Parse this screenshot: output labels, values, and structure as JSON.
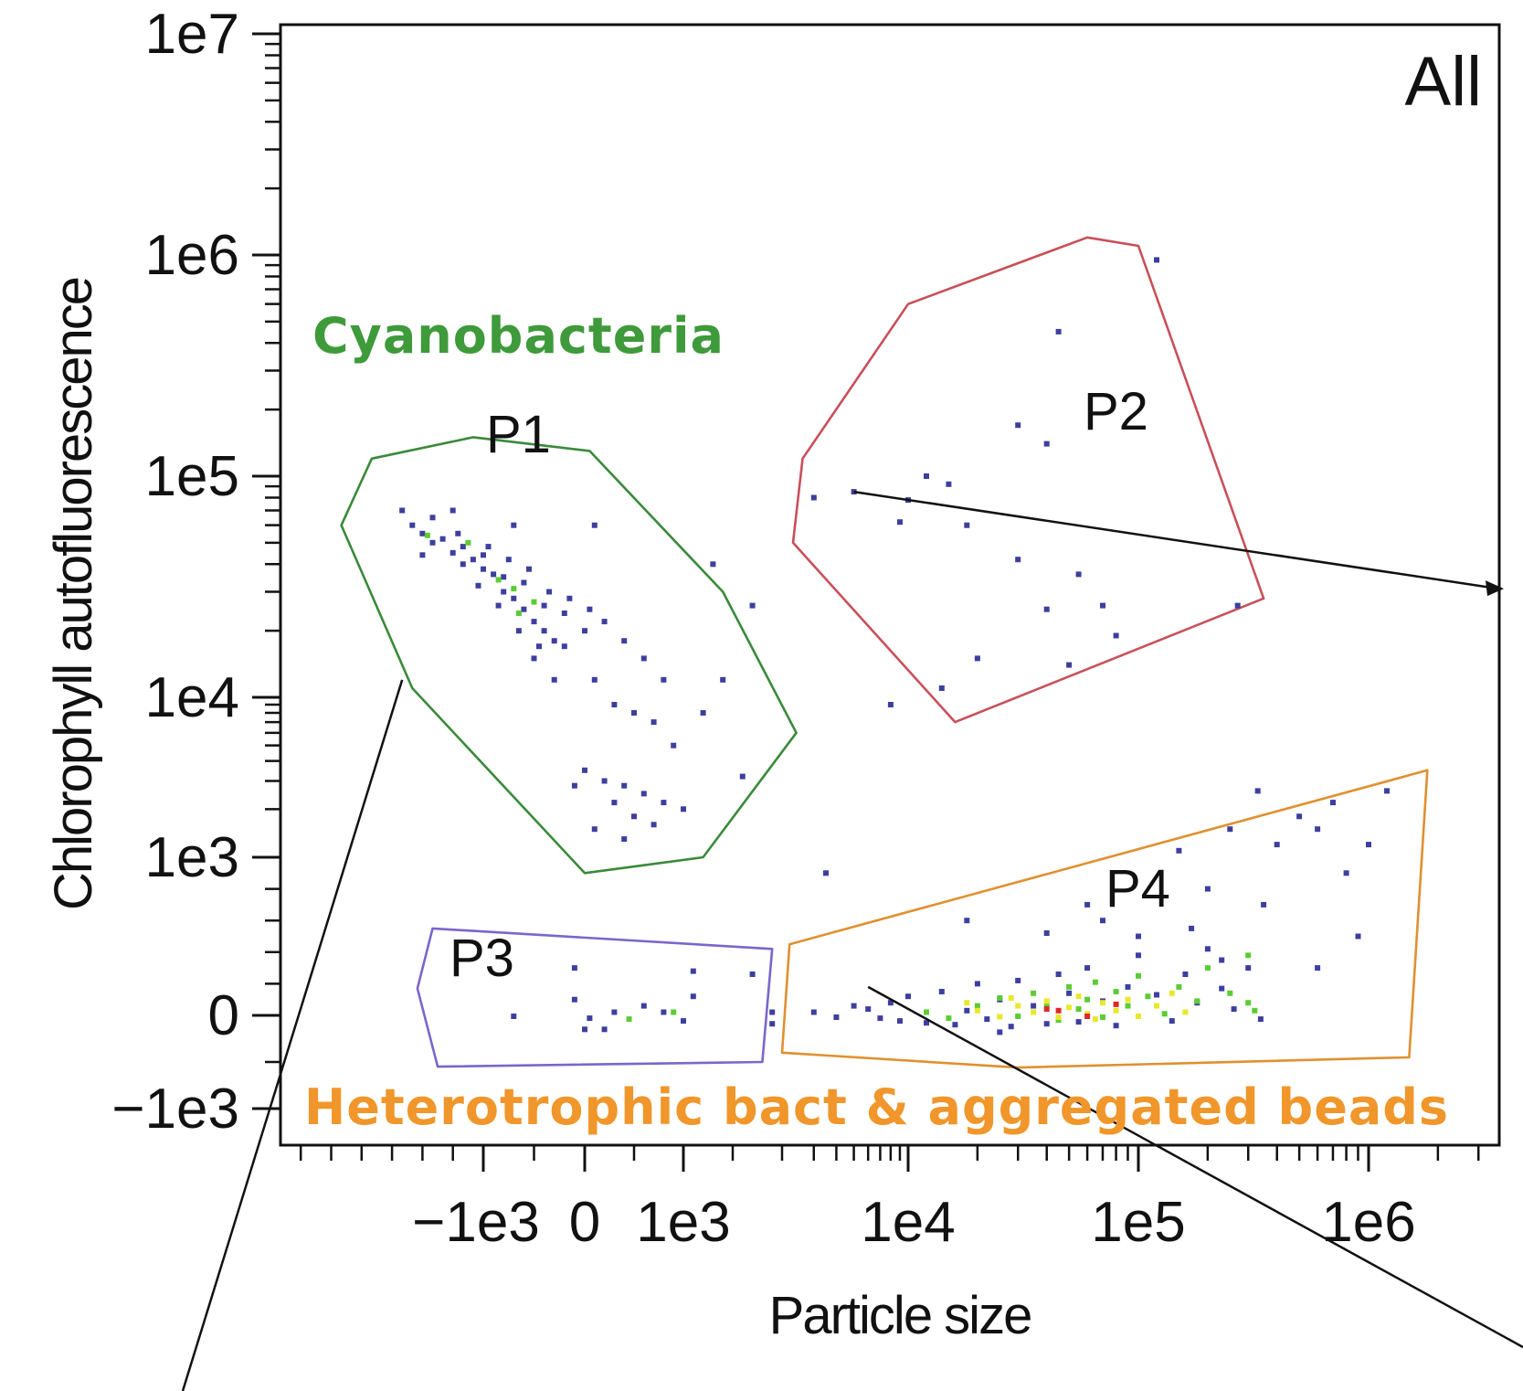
{
  "chart_data": {
    "type": "scatter",
    "subtype": "flow-cytometry-density-plot",
    "panel_label": "All",
    "xlabel": "Particle size",
    "ylabel": "Chlorophyll autofluorescence",
    "x_scale": "biexponential",
    "y_scale": "biexponential",
    "xlim": [
      -3000,
      3000000
    ],
    "ylim": [
      -1400,
      10000000
    ],
    "x_ticks": [
      {
        "value": -1000,
        "label": "−1e3"
      },
      {
        "value": 0,
        "label": "0"
      },
      {
        "value": 1000,
        "label": "1e3"
      },
      {
        "value": 10000,
        "label": "1e4"
      },
      {
        "value": 100000,
        "label": "1e5"
      },
      {
        "value": 1000000,
        "label": "1e6"
      }
    ],
    "y_ticks": [
      {
        "value": 10000000,
        "label": "1e7"
      },
      {
        "value": 1000000,
        "label": "1e6"
      },
      {
        "value": 100000,
        "label": "1e5"
      },
      {
        "value": 10000,
        "label": "1e4"
      },
      {
        "value": 1000,
        "label": "1e3"
      },
      {
        "value": 0,
        "label": "0"
      },
      {
        "value": -1000,
        "label": "−1e3"
      }
    ],
    "populations": [
      {
        "label": "Cyanobacteria",
        "color": "#3e9a3a"
      },
      {
        "label": "Heterotrophic bact & aggregated beads",
        "color": "#f0962a"
      }
    ],
    "gates": [
      {
        "name": "P1",
        "color": "#3a8a3a",
        "vertices": [
          [
            -2400,
            60000
          ],
          [
            -2100,
            120000
          ],
          [
            -1100,
            150000
          ],
          [
            50,
            130000
          ],
          [
            1400,
            30000
          ],
          [
            2400,
            6000
          ],
          [
            1200,
            1000
          ],
          [
            0,
            900
          ],
          [
            -1700,
            11000
          ]
        ]
      },
      {
        "name": "P2",
        "color": "#c8505a",
        "vertices": [
          [
            2300,
            50000
          ],
          [
            2600,
            120000
          ],
          [
            10000,
            600000
          ],
          [
            60000,
            1200000
          ],
          [
            100000,
            1100000
          ],
          [
            350000,
            28000
          ],
          [
            16000,
            7000
          ]
        ]
      },
      {
        "name": "P3",
        "color": "#7a66cc",
        "vertices": [
          [
            -1500,
            550
          ],
          [
            1900,
            420
          ],
          [
            1800,
            -500
          ],
          [
            -1450,
            -550
          ],
          [
            -1650,
            170
          ]
        ]
      },
      {
        "name": "P4",
        "color": "#e09030",
        "vertices": [
          [
            2200,
            450
          ],
          [
            1800000,
            3500
          ],
          [
            1500000,
            -450
          ],
          [
            30000,
            -560
          ],
          [
            2000,
            -400
          ]
        ]
      }
    ],
    "annotation_lines": [
      {
        "from": [
          5000,
          85000
        ],
        "to": [
          3000000,
          31000
        ],
        "arrowhead": true
      },
      {
        "from": [
          -1800,
          12000
        ],
        "to": [
          null,
          null
        ],
        "extends_below_plot": true
      },
      {
        "from": [
          6000,
          180
        ],
        "to": [
          null,
          null
        ],
        "extends_below_plot": true
      }
    ],
    "density_colors": {
      "low": "#3d3f9e",
      "mid": "#5ccc34",
      "high": "#e8e82c",
      "peak": "#e02828"
    },
    "events": {
      "P1": [
        [
          -1800,
          70000
        ],
        [
          -1700,
          60000
        ],
        [
          -1600,
          55000
        ],
        [
          -1500,
          50000
        ],
        [
          -1400,
          52000
        ],
        [
          -1300,
          45000
        ],
        [
          -1200,
          40000
        ],
        [
          -1100,
          42000
        ],
        [
          -1000,
          38000
        ],
        [
          -900,
          36000
        ],
        [
          -800,
          30000
        ],
        [
          -700,
          28000
        ],
        [
          -600,
          25000
        ],
        [
          -500,
          22000
        ],
        [
          -400,
          20000
        ],
        [
          -300,
          18000
        ],
        [
          -200,
          17000
        ],
        [
          -1500,
          65000
        ],
        [
          -1200,
          48000
        ],
        [
          -1000,
          44000
        ],
        [
          -800,
          35000
        ],
        [
          -600,
          33000
        ],
        [
          -400,
          26000
        ],
        [
          -200,
          24000
        ],
        [
          0,
          20000
        ],
        [
          -1300,
          70000
        ],
        [
          -1050,
          32000
        ],
        [
          -950,
          48000
        ],
        [
          -750,
          42000
        ],
        [
          -550,
          38000
        ],
        [
          -350,
          30000
        ],
        [
          -150,
          28000
        ],
        [
          50,
          25000
        ],
        [
          200,
          22000
        ],
        [
          400,
          18000
        ],
        [
          600,
          15000
        ],
        [
          800,
          12000
        ],
        [
          -500,
          15000
        ],
        [
          -300,
          12000
        ],
        [
          100,
          12000
        ],
        [
          300,
          9000
        ],
        [
          500,
          8000
        ],
        [
          700,
          7000
        ],
        [
          900,
          5000
        ],
        [
          0,
          3500
        ],
        [
          200,
          3000
        ],
        [
          400,
          2800
        ],
        [
          600,
          2500
        ],
        [
          800,
          2200
        ],
        [
          1000,
          2000
        ],
        [
          -100,
          2800
        ],
        [
          300,
          2200
        ],
        [
          500,
          1800
        ],
        [
          700,
          1600
        ],
        [
          100,
          1500
        ],
        [
          400,
          1300
        ],
        [
          1600,
          3200
        ],
        [
          1200,
          8000
        ],
        [
          1400,
          12000
        ],
        [
          1700,
          26000
        ],
        [
          1300,
          40000
        ],
        [
          100,
          60000
        ],
        [
          -700,
          60000
        ],
        [
          -1600,
          44000
        ],
        [
          -1250,
          55000
        ],
        [
          -850,
          26000
        ],
        [
          -650,
          20000
        ],
        [
          -450,
          17000
        ]
      ],
      "P1_mid": [
        [
          -1550,
          54000
        ],
        [
          -1150,
          50000
        ],
        [
          -850,
          34000
        ],
        [
          -700,
          31000
        ],
        [
          -500,
          27000
        ],
        [
          -650,
          24000
        ]
      ],
      "P2": [
        [
          120000,
          950000
        ],
        [
          45000,
          450000
        ],
        [
          30000,
          170000
        ],
        [
          40000,
          140000
        ],
        [
          12000,
          100000
        ],
        [
          15000,
          92000
        ],
        [
          10000,
          78000
        ],
        [
          9000,
          62000
        ],
        [
          18000,
          60000
        ],
        [
          30000,
          42000
        ],
        [
          55000,
          36000
        ],
        [
          70000,
          26000
        ],
        [
          40000,
          25000
        ],
        [
          80000,
          19000
        ],
        [
          50000,
          14000
        ],
        [
          20000,
          15000
        ],
        [
          14000,
          11000
        ],
        [
          8000,
          9000
        ],
        [
          5000,
          85000
        ],
        [
          3000,
          80000
        ],
        [
          270000,
          26000
        ]
      ],
      "P3": [
        [
          -100,
          300
        ],
        [
          -100,
          100
        ],
        [
          0,
          -150
        ],
        [
          300,
          20
        ],
        [
          600,
          60
        ],
        [
          800,
          20
        ],
        [
          1100,
          120
        ],
        [
          1100,
          280
        ],
        [
          1700,
          260
        ],
        [
          1900,
          20
        ],
        [
          -700,
          -10
        ],
        [
          200,
          -150
        ],
        [
          50,
          -30
        ]
      ],
      "P3_mid": [
        [
          450,
          -40
        ],
        [
          900,
          20
        ]
      ],
      "P4_low": [
        [
          3000,
          20
        ],
        [
          4000,
          -20
        ],
        [
          5000,
          60
        ],
        [
          6000,
          40
        ],
        [
          7000,
          -30
        ],
        [
          8000,
          80
        ],
        [
          9000,
          -60
        ],
        [
          10000,
          120
        ],
        [
          12000,
          -80
        ],
        [
          14000,
          150
        ],
        [
          16000,
          -100
        ],
        [
          18000,
          30
        ],
        [
          20000,
          200
        ],
        [
          22000,
          -40
        ],
        [
          25000,
          100
        ],
        [
          28000,
          -120
        ],
        [
          30000,
          220
        ],
        [
          35000,
          60
        ],
        [
          40000,
          -90
        ],
        [
          45000,
          260
        ],
        [
          50000,
          140
        ],
        [
          55000,
          -70
        ],
        [
          60000,
          300
        ],
        [
          70000,
          90
        ],
        [
          80000,
          -110
        ],
        [
          90000,
          180
        ],
        [
          100000,
          380
        ],
        [
          120000,
          130
        ],
        [
          140000,
          -60
        ],
        [
          160000,
          260
        ],
        [
          180000,
          80
        ],
        [
          200000,
          420
        ],
        [
          230000,
          170
        ],
        [
          260000,
          40
        ],
        [
          300000,
          300
        ],
        [
          350000,
          700
        ],
        [
          400000,
          1200
        ],
        [
          500000,
          1800
        ],
        [
          600000,
          1500
        ],
        [
          700000,
          2200
        ],
        [
          800000,
          900
        ],
        [
          900000,
          500
        ],
        [
          1000000,
          1200
        ],
        [
          1200000,
          2600
        ],
        [
          150000,
          1100
        ],
        [
          200000,
          800
        ],
        [
          250000,
          1500
        ],
        [
          100000,
          500
        ],
        [
          70000,
          600
        ],
        [
          60000,
          700
        ],
        [
          40000,
          520
        ],
        [
          18000,
          600
        ],
        [
          3500,
          900
        ],
        [
          330000,
          2600
        ],
        [
          340000,
          -40
        ],
        [
          600000,
          300
        ],
        [
          170000,
          550
        ],
        [
          230000,
          350
        ],
        [
          25000,
          -180
        ],
        [
          1000,
          -60
        ],
        [
          1900,
          -90
        ]
      ],
      "P4_mid": [
        [
          12000,
          20
        ],
        [
          15000,
          -30
        ],
        [
          20000,
          60
        ],
        [
          25000,
          110
        ],
        [
          30000,
          -10
        ],
        [
          35000,
          140
        ],
        [
          40000,
          70
        ],
        [
          45000,
          -50
        ],
        [
          50000,
          180
        ],
        [
          55000,
          40
        ],
        [
          60000,
          100
        ],
        [
          65000,
          210
        ],
        [
          70000,
          -20
        ],
        [
          80000,
          150
        ],
        [
          90000,
          60
        ],
        [
          100000,
          250
        ],
        [
          110000,
          120
        ],
        [
          130000,
          10
        ],
        [
          150000,
          180
        ],
        [
          180000,
          90
        ],
        [
          200000,
          300
        ],
        [
          250000,
          140
        ],
        [
          300000,
          80
        ],
        [
          300000,
          380
        ],
        [
          320000,
          30
        ]
      ],
      "P4_high": [
        [
          20000,
          30
        ],
        [
          25000,
          -15
        ],
        [
          30000,
          60
        ],
        [
          35000,
          20
        ],
        [
          40000,
          90
        ],
        [
          45000,
          -20
        ],
        [
          50000,
          50
        ],
        [
          55000,
          120
        ],
        [
          60000,
          10
        ],
        [
          70000,
          80
        ],
        [
          80000,
          30
        ],
        [
          90000,
          100
        ],
        [
          100000,
          -10
        ],
        [
          120000,
          60
        ],
        [
          140000,
          140
        ],
        [
          160000,
          20
        ],
        [
          18000,
          80
        ],
        [
          28000,
          110
        ],
        [
          65000,
          -40
        ]
      ],
      "P4_peak": [
        [
          40000,
          40
        ],
        [
          45000,
          30
        ],
        [
          60000,
          -10
        ],
        [
          80000,
          70
        ]
      ]
    }
  }
}
